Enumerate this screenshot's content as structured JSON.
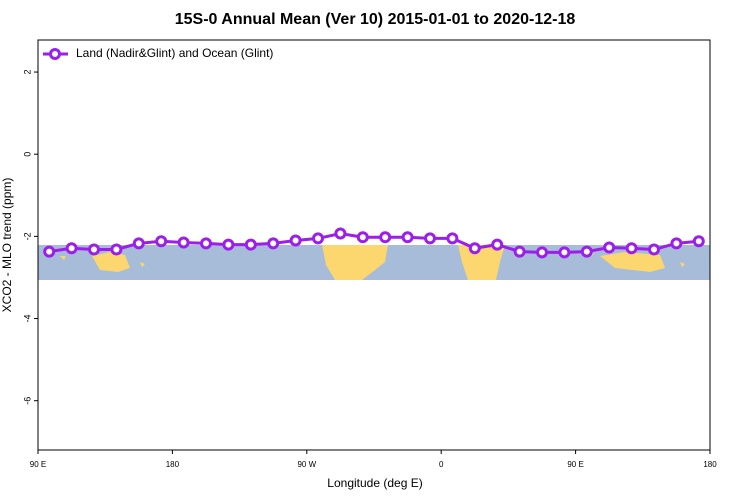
{
  "chart_data": {
    "type": "line",
    "title": "15S-0 Annual Mean (Ver 10)   2015-01-01 to 2020-12-18",
    "xlabel": "Longitude (deg E)",
    "ylabel": "XCO2 - MLO trend (ppm)",
    "x": [
      97.5,
      112.5,
      127.5,
      142.5,
      157.5,
      172.5,
      187.5,
      202.5,
      217.5,
      232.5,
      247.5,
      262.5,
      277.5,
      292.5,
      307.5,
      322.5,
      337.5,
      352.5,
      367.5,
      382.5,
      397.5,
      412.5,
      427.5,
      442.5,
      457.5,
      472.5,
      487.5,
      502.5,
      517.5,
      532.5
    ],
    "series": [
      {
        "name": "Land (Nadir&Glint) and Ocean (Glint)",
        "color": "#9b1fe8",
        "values": [
          -2.37,
          -2.29,
          -2.32,
          -2.32,
          -2.17,
          -2.12,
          -2.15,
          -2.17,
          -2.2,
          -2.2,
          -2.17,
          -2.1,
          -2.05,
          -1.93,
          -2.02,
          -2.02,
          -2.02,
          -2.05,
          -2.05,
          -2.29,
          -2.2,
          -2.37,
          -2.39,
          -2.39,
          -2.37,
          -2.27,
          -2.29,
          -2.32,
          -2.17,
          -2.12
        ]
      }
    ],
    "xlim": [
      90,
      540
    ],
    "xticks": [
      {
        "value": 90,
        "label": "90 E"
      },
      {
        "value": 180,
        "label": "180"
      },
      {
        "value": 270,
        "label": "90 W"
      },
      {
        "value": 360,
        "label": "0"
      },
      {
        "value": 450,
        "label": "90 E"
      },
      {
        "value": 540,
        "label": "180"
      }
    ],
    "ylim": [
      -7.2,
      2.78
    ],
    "yticks": [
      2,
      0,
      -2,
      -4,
      -6
    ],
    "legend": "top-left"
  }
}
